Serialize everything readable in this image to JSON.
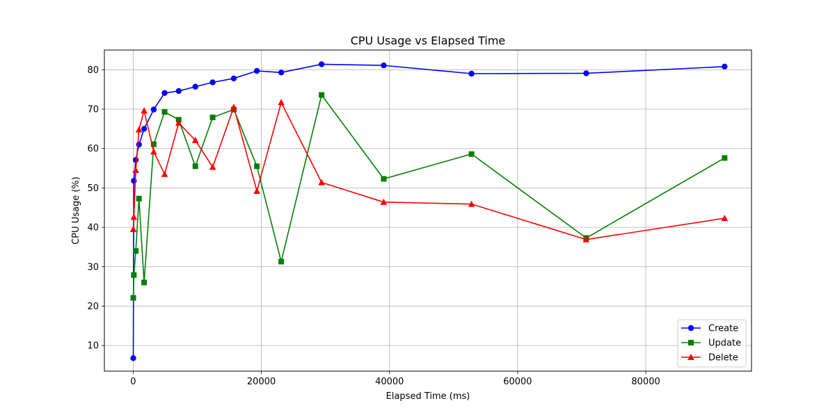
{
  "chart_data": {
    "type": "line",
    "title": "CPU Usage vs Elapsed Time",
    "xlabel": "Elapsed Time (ms)",
    "ylabel": "CPU Usage (%)",
    "xlim": [
      -4500,
      96500
    ],
    "ylim": [
      3.5,
      85
    ],
    "xticks": [
      0,
      20000,
      40000,
      60000,
      80000
    ],
    "yticks": [
      10,
      20,
      30,
      40,
      50,
      60,
      70,
      80
    ],
    "grid": true,
    "legend_position": "bottom-right",
    "series": [
      {
        "name": "Create",
        "color": "#0000ff",
        "marker": "circle",
        "x": [
          10,
          100,
          400,
          900,
          1700,
          3200,
          4900,
          7100,
          9700,
          12400,
          15700,
          19300,
          23100,
          29400,
          39100,
          52800,
          70700,
          92300
        ],
        "y": [
          6.8,
          51.8,
          57.1,
          61.0,
          65.0,
          69.9,
          74.1,
          74.6,
          75.7,
          76.8,
          77.8,
          79.7,
          79.3,
          81.4,
          81.1,
          79.0,
          79.1,
          80.8
        ]
      },
      {
        "name": "Update",
        "color": "#008000",
        "marker": "square",
        "x": [
          10,
          100,
          400,
          900,
          1700,
          3200,
          4900,
          7100,
          9700,
          12400,
          15700,
          19300,
          23100,
          29400,
          39100,
          52800,
          70700,
          92300
        ],
        "y": [
          22.1,
          27.9,
          34.0,
          47.3,
          26.0,
          61.1,
          69.3,
          67.3,
          55.5,
          67.9,
          69.9,
          55.5,
          31.3,
          73.6,
          52.3,
          58.6,
          37.3,
          57.6
        ]
      },
      {
        "name": "Delete",
        "color": "#ff0000",
        "marker": "triangle",
        "x": [
          10,
          100,
          400,
          900,
          1700,
          3200,
          4900,
          7100,
          9700,
          12400,
          15700,
          19300,
          23100,
          29400,
          39100,
          52800,
          70700,
          92300
        ],
        "y": [
          39.5,
          42.6,
          54.5,
          64.8,
          69.6,
          59.2,
          53.5,
          66.5,
          62.1,
          55.3,
          70.5,
          49.2,
          71.7,
          51.4,
          46.4,
          45.9,
          36.9,
          42.3
        ]
      }
    ]
  }
}
